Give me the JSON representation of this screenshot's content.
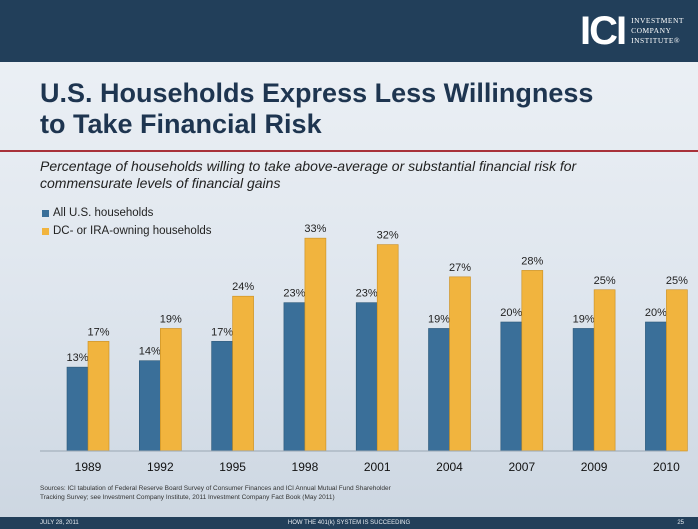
{
  "header": {
    "logo_mark": "ICI",
    "logo_lines": [
      "INVESTMENT",
      "COMPANY",
      "INSTITUTE®"
    ]
  },
  "title_line1": "U.S. Households Express Less Willingness",
  "title_line2": "to Take Financial Risk",
  "subtitle_line1": "Percentage of households willing to take above-average or substantial financial risk for",
  "subtitle_line2": "commensurate levels of financial gains",
  "colors": {
    "all": "#3a6f99",
    "dc": "#f1b43e",
    "header": "#223f5a",
    "rule": "#a8323a"
  },
  "chart_data": {
    "type": "bar",
    "categories": [
      "1989",
      "1992",
      "1995",
      "1998",
      "2001",
      "2004",
      "2007",
      "2009",
      "2010"
    ],
    "series": [
      {
        "name": "All U.S. households",
        "values": [
          13,
          14,
          17,
          23,
          23,
          19,
          20,
          19,
          20
        ]
      },
      {
        "name": "DC- or IRA-owning households",
        "values": [
          17,
          19,
          24,
          33,
          32,
          27,
          28,
          25,
          25
        ]
      }
    ],
    "value_suffix": "%",
    "legend_position": "top-left",
    "grid": false
  },
  "source_line1": "Sources: ICI tabulation of Federal Reserve Board Survey of Consumer Finances and ICI Annual Mutual Fund Shareholder",
  "source_line2": "Tracking Survey; see Investment Company Institute, 2011 Investment Company Fact Book (May 2011)",
  "footer": {
    "date": "JULY 28, 2011",
    "center": "HOW THE 401(k) SYSTEM IS SUCCEEDING",
    "page": "25"
  }
}
